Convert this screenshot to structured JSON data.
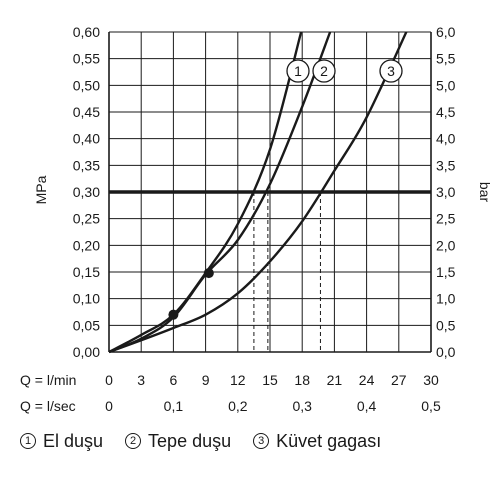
{
  "chart_data": {
    "type": "line",
    "title": "",
    "ylabel_left": "MPa",
    "ylabel_right": "bar",
    "row_labels": [
      "Q = l/min",
      "Q = l/sec"
    ],
    "x_lpm_ticks": [
      "0",
      "3",
      "6",
      "9",
      "12",
      "15",
      "18",
      "21",
      "24",
      "27",
      "30"
    ],
    "x_lps_ticks": [
      "0",
      "0,1",
      "0,2",
      "0,3",
      "0,4",
      "0,5"
    ],
    "y_left_ticks": [
      "0,00",
      "0,05",
      "0,10",
      "0,15",
      "0,20",
      "0,25",
      "0,30",
      "0,35",
      "0,40",
      "0,45",
      "0,50",
      "0,55",
      "0,60"
    ],
    "y_right_ticks": [
      "0,0",
      "0,5",
      "1,0",
      "1,5",
      "2,0",
      "2,5",
      "3,0",
      "3,5",
      "4,0",
      "4,5",
      "5,0",
      "5,5",
      "6,0"
    ],
    "xlim_lpm": [
      0,
      30
    ],
    "ylim_mpa": [
      0,
      0.6
    ],
    "grid": true,
    "reference_line_mpa": 0.3,
    "series": [
      {
        "name": "El duşu",
        "marker": "1",
        "x": [
          0,
          3,
          6,
          9,
          12,
          15,
          17.9
        ],
        "y": [
          0,
          0.032,
          0.07,
          0.148,
          0.24,
          0.38,
          0.6
        ]
      },
      {
        "name": "Tepe duşu",
        "marker": "2",
        "x": [
          0,
          3,
          6,
          9,
          12,
          15,
          18,
          20.6
        ],
        "y": [
          0,
          0.025,
          0.065,
          0.145,
          0.21,
          0.315,
          0.46,
          0.6
        ]
      },
      {
        "name": "Küvet gagası",
        "marker": "3",
        "x": [
          0,
          3,
          6,
          9,
          12,
          15,
          18,
          21,
          24,
          27.7
        ],
        "y": [
          0,
          0.022,
          0.045,
          0.07,
          0.11,
          0.17,
          0.245,
          0.34,
          0.44,
          0.6
        ]
      }
    ],
    "points": [
      {
        "x": 6,
        "y": 0.07
      },
      {
        "x": 9.3,
        "y": 0.148
      }
    ],
    "drop_lines_lpm": [
      13.5,
      14.8,
      19.7
    ]
  },
  "legend": [
    {
      "num": "1",
      "label": "El duşu"
    },
    {
      "num": "2",
      "label": "Tepe duşu"
    },
    {
      "num": "3",
      "label": "Küvet gagası"
    }
  ]
}
